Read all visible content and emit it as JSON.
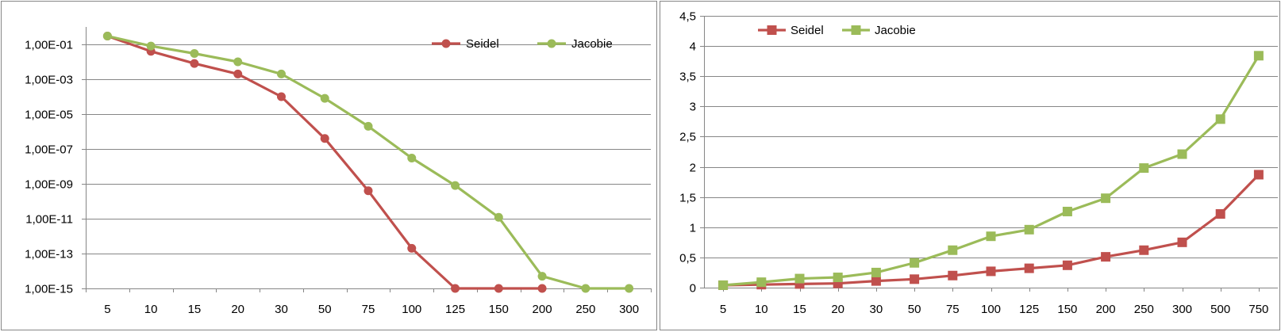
{
  "chart_data": [
    {
      "type": "line",
      "title": "",
      "xlabel": "",
      "ylabel": "",
      "categories": [
        "5",
        "10",
        "15",
        "20",
        "30",
        "50",
        "75",
        "100",
        "125",
        "150",
        "200",
        "250",
        "300"
      ],
      "yscale": "log",
      "ylim": [
        1e-15,
        1
      ],
      "y_ticks": [
        "1,00E-01",
        "1,00E-03",
        "1,00E-05",
        "1,00E-07",
        "1,00E-09",
        "1,00E-11",
        "1,00E-13",
        "1,00E-15"
      ],
      "grid": true,
      "legend_position": "top-right",
      "marker": "circle",
      "series": [
        {
          "name": "Seidel",
          "color": "#C0504D",
          "values": [
            0.3,
            0.04,
            0.008,
            0.002,
            0.0001,
            4e-07,
            4e-10,
            2e-13,
            1e-15,
            1e-15,
            1e-15,
            null,
            null
          ]
        },
        {
          "name": "Jacobie",
          "color": "#9BBB59",
          "values": [
            0.3,
            0.08,
            0.03,
            0.01,
            0.002,
            8e-05,
            2e-06,
            3e-08,
            8e-10,
            1.2e-11,
            5e-15,
            1e-15,
            1e-15
          ]
        }
      ]
    },
    {
      "type": "line",
      "title": "",
      "xlabel": "",
      "ylabel": "",
      "categories": [
        "5",
        "10",
        "15",
        "20",
        "30",
        "50",
        "75",
        "100",
        "125",
        "150",
        "200",
        "250",
        "300",
        "500",
        "750"
      ],
      "ylim": [
        0,
        4.5
      ],
      "y_ticks": [
        "0",
        "0,5",
        "1",
        "1,5",
        "2",
        "2,5",
        "3",
        "3,5",
        "4",
        "4,5"
      ],
      "grid": true,
      "legend_position": "top-left",
      "marker": "square",
      "series": [
        {
          "name": "Seidel",
          "color": "#C0504D",
          "values": [
            0.04,
            0.05,
            0.06,
            0.07,
            0.11,
            0.14,
            0.2,
            0.27,
            0.32,
            0.37,
            0.51,
            0.62,
            0.75,
            1.22,
            1.87
          ]
        },
        {
          "name": "Jacobie",
          "color": "#9BBB59",
          "values": [
            0.04,
            0.09,
            0.15,
            0.17,
            0.25,
            0.41,
            0.62,
            0.85,
            0.96,
            1.26,
            1.48,
            1.98,
            2.21,
            2.79,
            3.84
          ]
        }
      ]
    }
  ]
}
